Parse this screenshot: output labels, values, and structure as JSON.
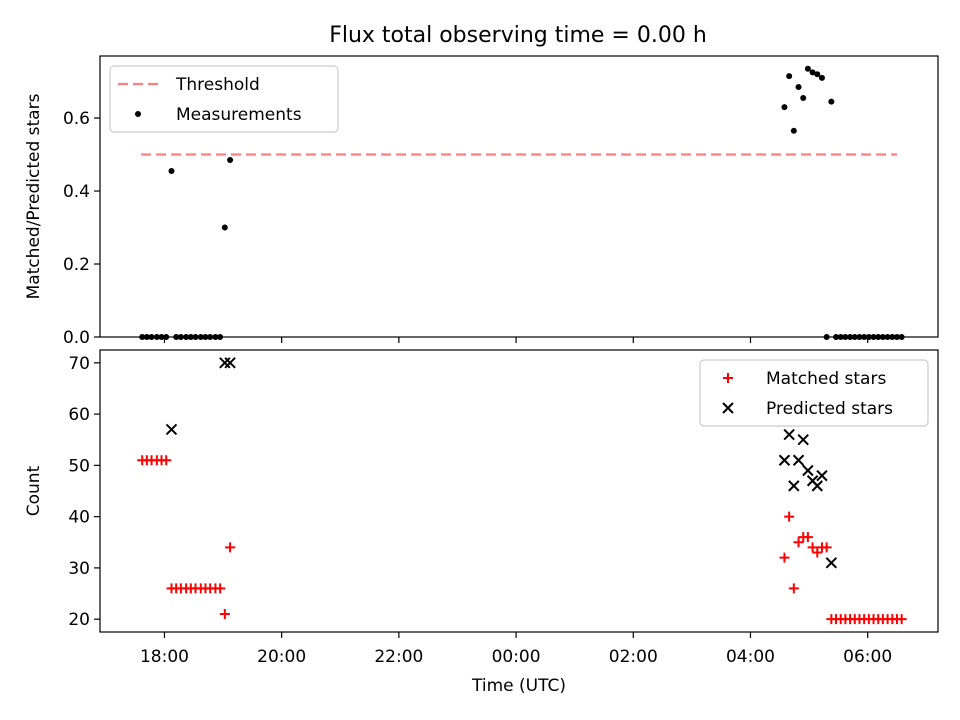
{
  "figure": {
    "title": "Flux total observing time = 0.00 h"
  },
  "chart_data": [
    {
      "type": "scatter",
      "ylabel": "Matched/Predicted stars",
      "xlabel": "",
      "x_unit": "hours_utc_continuous",
      "xlim": [
        16.9,
        31.2
      ],
      "ylim": [
        0,
        0.77
      ],
      "y_ticks": [
        0.0,
        0.2,
        0.4,
        0.6
      ],
      "y_tick_labels": [
        "0.0",
        "0.2",
        "0.4",
        "0.6"
      ],
      "legend_position": "upper-left",
      "grid": false,
      "threshold": {
        "name": "Threshold",
        "value": 0.5,
        "x_range": [
          17.6,
          30.5
        ],
        "color": "#ff7f7f",
        "style": "dashed"
      },
      "series": [
        {
          "name": "Measurements",
          "color": "#000000",
          "marker": "dot",
          "x": [
            17.62,
            17.7,
            17.78,
            17.87,
            17.95,
            18.03,
            18.12,
            18.2,
            18.28,
            18.37,
            18.45,
            18.53,
            18.62,
            18.7,
            18.78,
            18.87,
            18.95,
            19.03,
            19.12,
            28.58,
            28.66,
            28.74,
            28.82,
            28.9,
            28.98,
            29.06,
            29.14,
            29.22,
            29.3,
            29.38,
            29.46,
            29.54,
            29.62,
            29.7,
            29.78,
            29.86,
            29.94,
            30.02,
            30.1,
            30.18,
            30.26,
            30.34,
            30.42,
            30.5,
            30.58
          ],
          "y": [
            0,
            0,
            0,
            0,
            0,
            0,
            0.455,
            0,
            0,
            0,
            0,
            0,
            0,
            0,
            0,
            0,
            0,
            0.3,
            0.485,
            0.63,
            0.715,
            0.565,
            0.685,
            0.655,
            0.735,
            0.725,
            0.72,
            0.71,
            0,
            0.645,
            0,
            0,
            0,
            0,
            0,
            0,
            0,
            0,
            0,
            0,
            0,
            0,
            0,
            0,
            0
          ]
        }
      ]
    },
    {
      "type": "scatter",
      "ylabel": "Count",
      "xlabel": "Time (UTC)",
      "x_unit": "hours_utc_continuous",
      "xlim": [
        16.9,
        31.2
      ],
      "ylim": [
        17.5,
        72.5
      ],
      "y_ticks": [
        20,
        30,
        40,
        50,
        60,
        70
      ],
      "y_tick_labels": [
        "20",
        "30",
        "40",
        "50",
        "60",
        "70"
      ],
      "x_ticks": [
        18,
        20,
        22,
        24,
        26,
        28,
        30
      ],
      "x_tick_labels": [
        "18:00",
        "20:00",
        "22:00",
        "00:00",
        "02:00",
        "04:00",
        "06:00"
      ],
      "legend_position": "upper-right",
      "grid": false,
      "series": [
        {
          "name": "Matched stars",
          "color": "#ff0000",
          "marker": "plus",
          "x": [
            17.62,
            17.7,
            17.78,
            17.87,
            17.95,
            18.03,
            18.12,
            18.2,
            18.28,
            18.37,
            18.45,
            18.53,
            18.62,
            18.7,
            18.78,
            18.87,
            18.95,
            19.03,
            19.12,
            28.58,
            28.66,
            28.74,
            28.82,
            28.9,
            28.98,
            29.06,
            29.14,
            29.22,
            29.3,
            29.38,
            29.46,
            29.54,
            29.62,
            29.7,
            29.78,
            29.86,
            29.94,
            30.02,
            30.1,
            30.18,
            30.26,
            30.34,
            30.42,
            30.5,
            30.58
          ],
          "y": [
            51,
            51,
            51,
            51,
            51,
            51,
            26,
            26,
            26,
            26,
            26,
            26,
            26,
            26,
            26,
            26,
            26,
            21,
            34,
            32,
            40,
            26,
            35,
            36,
            36,
            34,
            33,
            34,
            34,
            20,
            20,
            20,
            20,
            20,
            20,
            20,
            20,
            20,
            20,
            20,
            20,
            20,
            20,
            20,
            20
          ]
        },
        {
          "name": "Predicted stars",
          "color": "#000000",
          "marker": "x",
          "x": [
            18.12,
            19.03,
            19.12,
            28.58,
            28.66,
            28.74,
            28.82,
            28.9,
            28.98,
            29.06,
            29.14,
            29.22,
            29.38
          ],
          "y": [
            57,
            70,
            70,
            51,
            56,
            46,
            51,
            55,
            49,
            47,
            46,
            48,
            31
          ]
        }
      ]
    }
  ]
}
